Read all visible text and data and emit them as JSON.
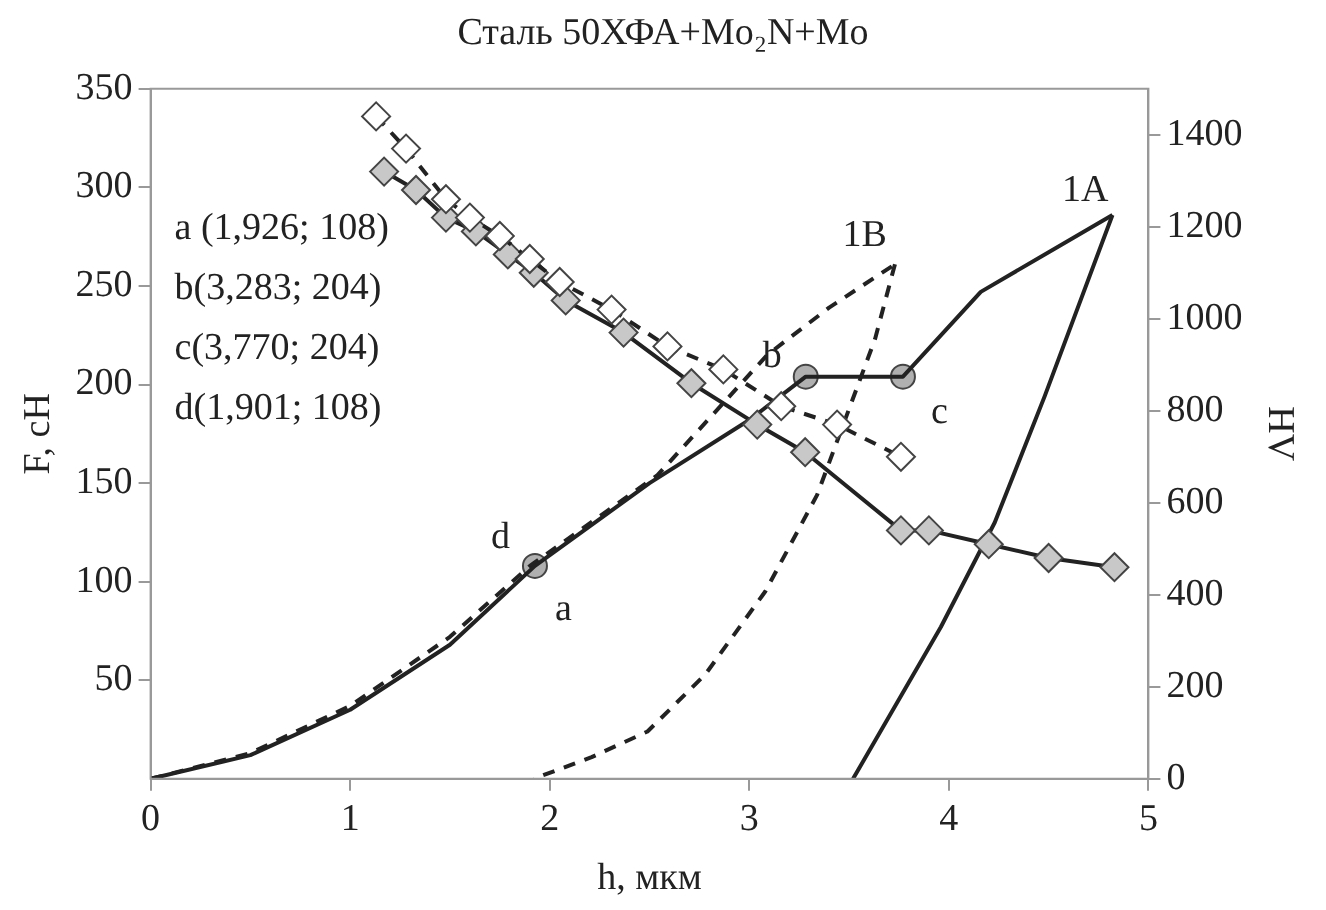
{
  "chart_data": {
    "type": "line",
    "title": "Сталь 50ХФА+Mo₂N+Mo",
    "xlabel": "h, мкм",
    "ylabel": "F, сН",
    "y2label": "HV",
    "xlim": [
      0,
      5
    ],
    "xticks": [
      0,
      1,
      2,
      3,
      4,
      5
    ],
    "ylim": [
      0,
      350
    ],
    "yticks": [
      50,
      100,
      150,
      200,
      250,
      300,
      350
    ],
    "y2lim": [
      0,
      1500
    ],
    "y2ticks": [
      0,
      200,
      400,
      600,
      800,
      1000,
      1200,
      1400
    ],
    "grid": false,
    "legend": false,
    "series": [
      {
        "color": "#222222",
        "line_style": "solid",
        "marker": "none",
        "x": [
          0,
          0.5,
          1,
          1.5,
          1.926,
          2.5,
          3,
          3.283,
          3.77,
          4.16,
          4.82
        ],
        "values": [
          0,
          12,
          35,
          68,
          108,
          150,
          182,
          204,
          204,
          247,
          286
        ]
      },
      {
        "color": "#222222",
        "line_style": "solid",
        "marker": "none",
        "x": [
          4.82,
          4.48,
          4.23,
          3.96,
          3.52
        ],
        "values": [
          286,
          194,
          130,
          77,
          0
        ]
      },
      {
        "color": "#222222",
        "line_style": "dashed",
        "marker": "none",
        "x": [
          0,
          0.5,
          1,
          1.5,
          1.901,
          2.54,
          3.09,
          3.4,
          3.73
        ],
        "values": [
          0,
          13,
          37,
          72,
          108,
          154,
          215,
          239,
          261
        ]
      },
      {
        "color": "#222222",
        "line_style": "dashed",
        "marker": "none",
        "x": [
          3.73,
          3.63,
          3.34,
          3.08,
          2.78,
          2.49,
          2.21,
          1.92
        ],
        "values": [
          261,
          223,
          144,
          95,
          53,
          24,
          11,
          0
        ]
      },
      {
        "type": "scatter",
        "color": "#b0b0b0",
        "marker": "circle",
        "x": [
          1.926,
          3.283,
          3.77
        ],
        "values": [
          108,
          204,
          204
        ]
      },
      {
        "color": "#c8c8c8",
        "line_style": "solid",
        "marker": "diamond",
        "axis": "y2",
        "x": [
          1.17,
          1.33,
          1.48,
          1.63,
          1.79,
          1.92,
          2.08,
          2.37,
          2.71,
          3.04,
          3.28,
          3.76,
          3.9,
          4.2,
          4.5,
          4.83
        ],
        "values": [
          1320,
          1280,
          1220,
          1190,
          1140,
          1100,
          1040,
          970,
          860,
          770,
          710,
          540,
          540,
          510,
          480,
          460
        ]
      },
      {
        "color": "#ffffff",
        "line_style": "dashed",
        "marker": "diamond",
        "axis": "y2",
        "x": [
          1.13,
          1.28,
          1.48,
          1.6,
          1.75,
          1.9,
          2.05,
          2.31,
          2.59,
          2.87,
          3.16,
          3.44,
          3.76
        ],
        "values": [
          1440,
          1370,
          1260,
          1220,
          1180,
          1130,
          1080,
          1020,
          940,
          890,
          810,
          770,
          700
        ]
      }
    ],
    "annotations": [
      "a (1,926; 108)",
      "b(3,283; 204)",
      "c(3,770; 204)",
      "d(1,901; 108)",
      {
        "text": "1A",
        "x": 4.82,
        "y": 286
      },
      {
        "text": "1B",
        "x": 3.73,
        "y": 261
      },
      {
        "text": "a",
        "x": 1.926,
        "y": 108
      },
      {
        "text": "b",
        "x": 3.283,
        "y": 204
      },
      {
        "text": "c",
        "x": 3.77,
        "y": 204
      },
      {
        "text": "d",
        "x": 1.901,
        "y": 108
      }
    ]
  }
}
